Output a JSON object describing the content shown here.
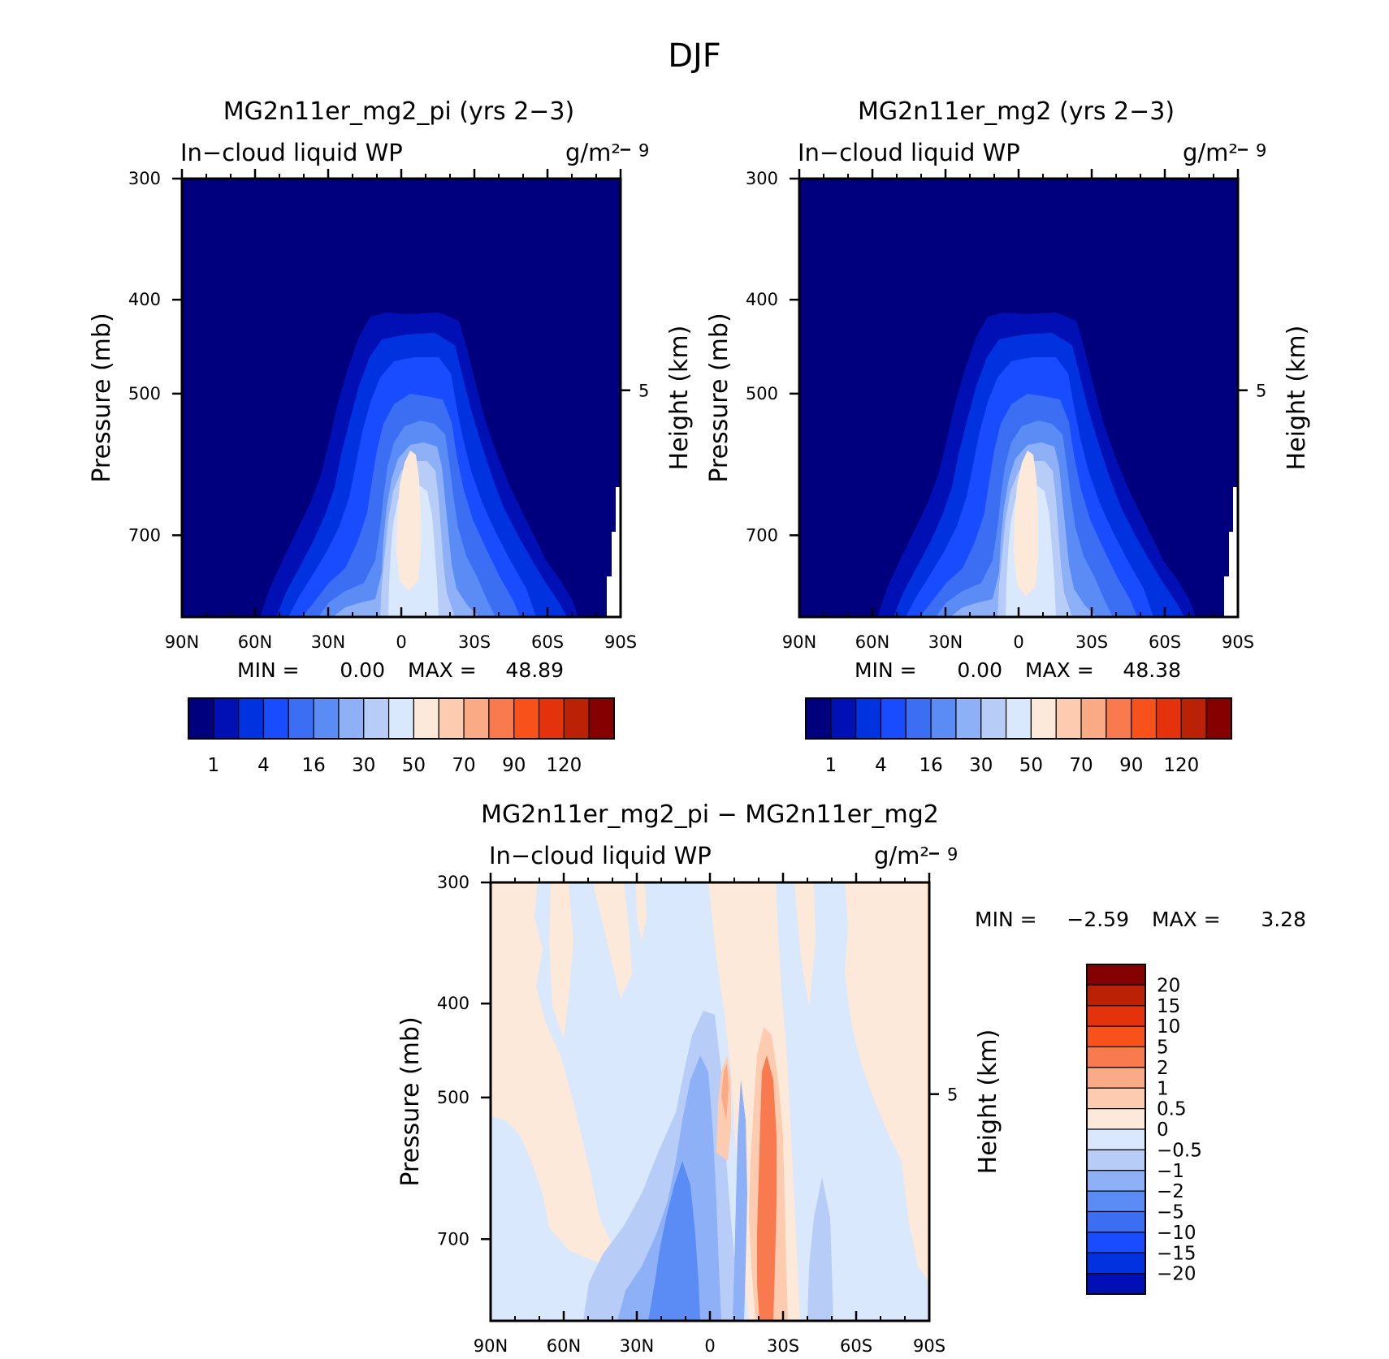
{
  "figure": {
    "title": "DJF"
  },
  "chart_data": [
    {
      "type": "heatmap",
      "title": "MG2n11er_mg2_pi (yrs 2−3)",
      "left_label": "In−cloud liquid WP",
      "units": "g/m²",
      "ylabel": "Pressure (mb)",
      "ylabel_right": "Height (km)",
      "x_ticks": [
        "90N",
        "60N",
        "30N",
        "0",
        "30S",
        "60S",
        "90S"
      ],
      "y_ticks": [
        "300",
        "400",
        "500",
        "700"
      ],
      "y_ticks_right": [
        "9",
        "5"
      ],
      "y_scale": "log-pressure",
      "ylim": [
        300,
        850
      ],
      "stats": {
        "min_label": "MIN =",
        "min": "0.00",
        "max_label": "MAX =",
        "max": "48.89"
      },
      "levels": [
        "1",
        "4",
        "16",
        "30",
        "50",
        "70",
        "90",
        "120"
      ],
      "colors": [
        "#00007f",
        "#0010b4",
        "#0032e0",
        "#1a4cff",
        "#3c6ef4",
        "#5b8cf6",
        "#8eb0f6",
        "#b8ccf8",
        "#d9e8fc",
        "#fde9d9",
        "#fccbb0",
        "#fbaa86",
        "#fa7a4f",
        "#f8521a",
        "#e4330c",
        "#bb2104",
        "#850000"
      ]
    },
    {
      "type": "heatmap",
      "title": "MG2n11er_mg2 (yrs 2−3)",
      "left_label": "In−cloud liquid WP",
      "units": "g/m²",
      "ylabel": "Pressure (mb)",
      "ylabel_right": "Height (km)",
      "x_ticks": [
        "90N",
        "60N",
        "30N",
        "0",
        "30S",
        "60S",
        "90S"
      ],
      "y_ticks": [
        "300",
        "400",
        "500",
        "700"
      ],
      "y_ticks_right": [
        "9",
        "5"
      ],
      "y_scale": "log-pressure",
      "ylim": [
        300,
        850
      ],
      "stats": {
        "min_label": "MIN =",
        "min": "0.00",
        "max_label": "MAX =",
        "max": "48.38"
      },
      "levels": [
        "1",
        "4",
        "16",
        "30",
        "50",
        "70",
        "90",
        "120"
      ],
      "colors": [
        "#00007f",
        "#0010b4",
        "#0032e0",
        "#1a4cff",
        "#3c6ef4",
        "#5b8cf6",
        "#8eb0f6",
        "#b8ccf8",
        "#d9e8fc",
        "#fde9d9",
        "#fccbb0",
        "#fbaa86",
        "#fa7a4f",
        "#f8521a",
        "#e4330c",
        "#bb2104",
        "#850000"
      ]
    },
    {
      "type": "heatmap",
      "title": "MG2n11er_mg2_pi − MG2n11er_mg2",
      "left_label": "In−cloud liquid WP",
      "units": "g/m²",
      "ylabel": "Pressure (mb)",
      "ylabel_right": "Height (km)",
      "x_ticks": [
        "90N",
        "60N",
        "30N",
        "0",
        "30S",
        "60S",
        "90S"
      ],
      "y_ticks": [
        "300",
        "400",
        "500",
        "700"
      ],
      "y_ticks_right": [
        "9",
        "5"
      ],
      "y_scale": "log-pressure",
      "ylim": [
        300,
        850
      ],
      "stats": {
        "min_label": "MIN =",
        "min": "−2.59",
        "max_label": "MAX =",
        "max": "3.28"
      },
      "levels": [
        "20",
        "15",
        "10",
        "5",
        "2",
        "1",
        "0.5",
        "0",
        "−0.5",
        "−1",
        "−2",
        "−5",
        "−10",
        "−15",
        "−20"
      ],
      "colors": [
        "#850000",
        "#bb2104",
        "#e4330c",
        "#f8521a",
        "#fa7a4f",
        "#fbaa86",
        "#fccbb0",
        "#fde9d9",
        "#d9e8fc",
        "#b8ccf8",
        "#8eb0f6",
        "#5b8cf6",
        "#3c6ef4",
        "#1a4cff",
        "#0032e0",
        "#0010b4"
      ]
    }
  ]
}
